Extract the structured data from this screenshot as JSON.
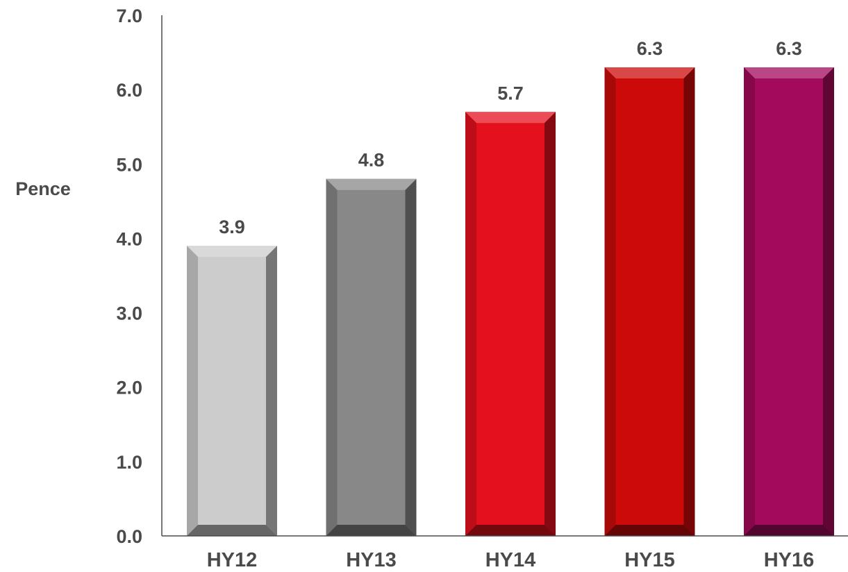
{
  "chart_data": {
    "type": "bar",
    "categories": [
      "HY12",
      "HY13",
      "HY14",
      "HY15",
      "HY16"
    ],
    "values": [
      3.9,
      4.8,
      5.7,
      6.3,
      6.3
    ],
    "value_labels": [
      "3.9",
      "4.8",
      "5.7",
      "6.3",
      "6.3"
    ],
    "title": "",
    "xlabel": "",
    "ylabel": "Pence",
    "ylim": [
      0,
      7
    ],
    "yticks": [
      "0.0",
      "1.0",
      "2.0",
      "3.0",
      "4.0",
      "5.0",
      "6.0",
      "7.0"
    ],
    "grid": false,
    "bar_colors": [
      "#cccccc",
      "#888888",
      "#e5101d",
      "#cc0a0a",
      "#a30a5c"
    ]
  }
}
